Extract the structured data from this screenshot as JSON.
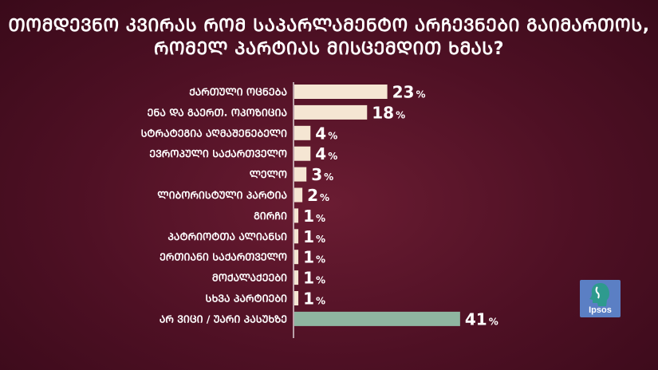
{
  "title": {
    "line1": "ᲗᲝᲛᲓᲔᲕᲜᲝ ᲙᲕᲘᲠᲐᲡ ᲠᲝᲛ ᲡᲐᲞᲐᲠᲚᲐᲛᲔᲜᲢᲝ ᲐᲠᲩᲔᲕᲜᲔᲑᲘ ᲒᲐᲘᲛᲐᲠᲗᲝᲡ,",
    "line2": "ᲠᲝᲛᲔᲚ ᲞᲐᲠᲢᲘᲐᲡ ᲛᲘᲡᲪᲔᲛᲓᲘᲗ ᲮᲛᲐᲡ?"
  },
  "logo": {
    "text": "Ipsos",
    "color": "#5b7fc4"
  },
  "colors": {
    "bar": "#f5e6d3",
    "bar_highlight": "#8fb5a0",
    "axis": "#ffffff",
    "text": "#ffffff"
  },
  "chart_data": {
    "type": "bar",
    "orientation": "horizontal",
    "categories": [
      "ᲥᲐᲠᲗᲣᲚᲘ ᲝᲪᲜᲔᲑᲐ",
      "ᲔᲜᲐ ᲓᲐ ᲒᲐᲔᲠᲗ. ᲝᲞᲝᲖᲘᲪᲘᲐ",
      "ᲡᲢᲠᲐᲢᲔᲒᲘᲐ ᲐᲦᲛᲐᲨᲔᲜᲔᲑᲔᲚᲘ",
      "ᲔᲕᲠᲝᲞᲣᲚᲘ ᲡᲐᲥᲐᲠᲗᲕᲔᲚᲝ",
      "ᲚᲔᲚᲝ",
      "ᲚᲘᲑᲝᲠᲘᲡᲢᲣᲚᲘ ᲞᲐᲠᲢᲘᲐ",
      "ᲒᲘᲠᲩᲘ",
      "ᲞᲐᲢᲠᲘᲝᲢᲗᲐ ᲐᲚᲘᲐᲜᲡᲘ",
      "ᲔᲠᲗᲘᲐᲜᲘ ᲡᲐᲥᲐᲠᲗᲕᲔᲚᲝ",
      "ᲛᲝᲥᲐᲚᲐᲥᲔᲔᲑᲘ",
      "ᲡᲮᲕᲐ ᲞᲐᲠᲢᲘᲔᲑᲘ",
      "ᲐᲠ ᲕᲘᲪᲘ / ᲣᲐᲠᲘ ᲞᲐᲡᲣᲮᲖᲔ"
    ],
    "values": [
      23,
      18,
      4,
      4,
      3,
      2,
      1,
      1,
      1,
      1,
      1,
      41
    ],
    "value_suffix": "%",
    "highlight_index": 11,
    "xlim": [
      0,
      50
    ]
  }
}
